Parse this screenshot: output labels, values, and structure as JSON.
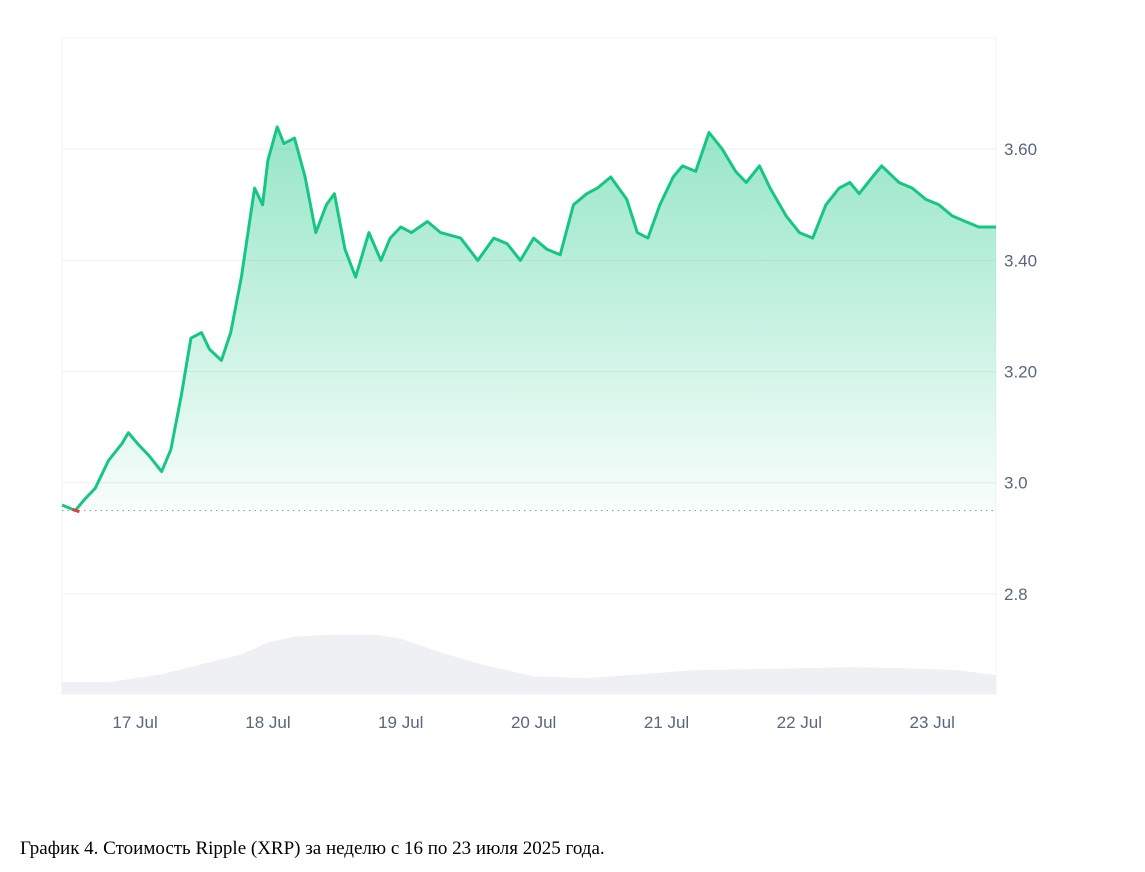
{
  "caption": "График 4. Стоимость Ripple (XRP) за неделю с 16 по 23 июля 2025 года.",
  "colors": {
    "line": "#16c784",
    "below_line": "#ea3943",
    "fill_top": "#16c784",
    "volume": "#eef0f3",
    "grid": "#eef0f3",
    "baseline": "#9aa2b1",
    "text": "#58667e"
  },
  "chart_data": {
    "type": "area",
    "title": "",
    "xlabel": "",
    "ylabel": "",
    "ylim": [
      2.62,
      3.8
    ],
    "y_axis_position": "right",
    "grid": true,
    "yticks": [
      "2.8",
      "3.0",
      "3.20",
      "3.40",
      "3.60"
    ],
    "ytick_values": [
      2.8,
      3.0,
      3.2,
      3.4,
      3.6
    ],
    "xticks": [
      "17 Jul",
      "18 Jul",
      "19 Jul",
      "20 Jul",
      "21 Jul",
      "22 Jul",
      "23 Jul"
    ],
    "xtick_days": [
      1,
      2,
      3,
      4,
      5,
      6,
      7
    ],
    "x_range_days": [
      0.45,
      7.48
    ],
    "baseline_value": 2.95,
    "price_series": {
      "x_days": [
        0.45,
        0.55,
        0.62,
        0.7,
        0.8,
        0.9,
        0.95,
        1.02,
        1.1,
        1.2,
        1.27,
        1.35,
        1.42,
        1.5,
        1.56,
        1.65,
        1.72,
        1.8,
        1.9,
        1.96,
        2.0,
        2.07,
        2.12,
        2.2,
        2.28,
        2.36,
        2.44,
        2.5,
        2.58,
        2.66,
        2.76,
        2.85,
        2.92,
        3.0,
        3.08,
        3.2,
        3.3,
        3.45,
        3.58,
        3.7,
        3.8,
        3.9,
        4.0,
        4.1,
        4.2,
        4.3,
        4.4,
        4.48,
        4.58,
        4.7,
        4.78,
        4.86,
        4.95,
        5.05,
        5.12,
        5.22,
        5.32,
        5.42,
        5.52,
        5.6,
        5.7,
        5.78,
        5.9,
        6.0,
        6.1,
        6.2,
        6.3,
        6.38,
        6.45,
        6.55,
        6.62,
        6.75,
        6.85,
        6.95,
        7.05,
        7.15,
        7.25,
        7.35,
        7.48
      ],
      "values": [
        2.96,
        2.95,
        2.97,
        2.99,
        3.04,
        3.07,
        3.09,
        3.07,
        3.05,
        3.02,
        3.06,
        3.16,
        3.26,
        3.27,
        3.24,
        3.22,
        3.27,
        3.37,
        3.53,
        3.5,
        3.58,
        3.64,
        3.61,
        3.62,
        3.55,
        3.45,
        3.5,
        3.52,
        3.42,
        3.37,
        3.45,
        3.4,
        3.44,
        3.46,
        3.45,
        3.47,
        3.45,
        3.44,
        3.4,
        3.44,
        3.43,
        3.4,
        3.44,
        3.42,
        3.41,
        3.5,
        3.52,
        3.53,
        3.55,
        3.51,
        3.45,
        3.44,
        3.5,
        3.55,
        3.57,
        3.56,
        3.63,
        3.6,
        3.56,
        3.54,
        3.57,
        3.53,
        3.48,
        3.45,
        3.44,
        3.5,
        3.53,
        3.54,
        3.52,
        3.55,
        3.57,
        3.54,
        3.53,
        3.51,
        3.5,
        3.48,
        3.47,
        3.46,
        3.46
      ]
    },
    "volume_series": {
      "x_days": [
        0.45,
        0.8,
        1.2,
        1.5,
        1.8,
        2.0,
        2.2,
        2.5,
        2.8,
        3.0,
        3.3,
        3.6,
        4.0,
        4.4,
        4.8,
        5.2,
        5.6,
        6.0,
        6.4,
        6.8,
        7.2,
        7.48
      ],
      "values": [
        0.12,
        0.12,
        0.2,
        0.3,
        0.4,
        0.52,
        0.58,
        0.6,
        0.6,
        0.56,
        0.42,
        0.3,
        0.18,
        0.16,
        0.2,
        0.24,
        0.25,
        0.26,
        0.27,
        0.26,
        0.24,
        0.19
      ]
    }
  }
}
